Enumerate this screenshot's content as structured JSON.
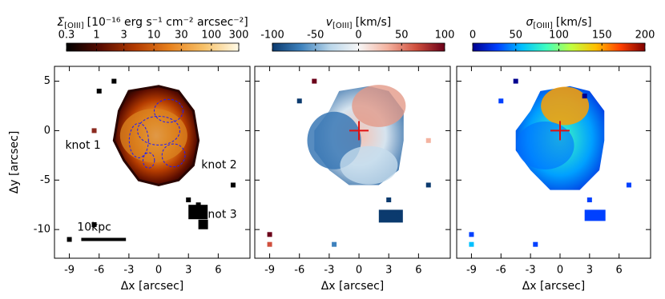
{
  "chart_data": [
    {
      "type": "map",
      "title": {
        "symbol": "Σ",
        "subscript": "[OIII]",
        "unit": "[10⁻¹⁶ erg s⁻¹ cm⁻² arcsec⁻²]"
      },
      "colorbar": {
        "lim": [
          0.3,
          300
        ],
        "log": true,
        "ticks": [
          0.3,
          1,
          3,
          10,
          30,
          100,
          300
        ],
        "colors": [
          "#000000",
          "#5a0c00",
          "#b33b00",
          "#e8821e",
          "#f7c26a",
          "#fffbe8"
        ]
      },
      "xlabel": "Δx [arcsec]",
      "ylabel": "Δy [arcsec]",
      "xlim": [
        -10.5,
        9.2
      ],
      "ylim": [
        -12.9,
        6.5
      ],
      "xticks": [
        -9,
        -6,
        -3,
        0,
        3,
        6
      ],
      "yticks": [
        -10,
        -5,
        0,
        5
      ],
      "ytick_labels": true,
      "annotations": [
        "knot 1",
        "knot 2",
        "knot 3",
        "10kpc"
      ]
    },
    {
      "type": "map",
      "title": {
        "symbol": "v",
        "subscript": "[OIII]",
        "unit": "[km/s]"
      },
      "colorbar": {
        "lim": [
          -100,
          100
        ],
        "log": false,
        "ticks": [
          -100,
          -50,
          0,
          50,
          100
        ],
        "colors": [
          "#0b3a6e",
          "#3e82bd",
          "#b9d6ea",
          "#f7f7f7",
          "#f4b3a0",
          "#d0503e",
          "#6b0019"
        ]
      },
      "xlabel": "Δx [arcsec]",
      "xlim": [
        -10.5,
        9.2
      ],
      "ylim": [
        -12.9,
        6.5
      ],
      "xticks": [
        -9,
        -6,
        -3,
        0,
        3,
        6
      ],
      "yticks": [
        -10,
        -5,
        0,
        5
      ],
      "ytick_labels": false
    },
    {
      "type": "map",
      "title": {
        "symbol": "σ",
        "subscript": "[OIII]",
        "unit": "[km/s]"
      },
      "colorbar": {
        "lim": [
          0,
          200
        ],
        "log": false,
        "ticks": [
          0,
          50,
          100,
          150,
          200
        ],
        "colors": [
          "#00008f",
          "#0040ff",
          "#00c0ff",
          "#40ffbf",
          "#c0ff40",
          "#ffc000",
          "#ff4000",
          "#800000"
        ]
      },
      "xlabel": "Δx [arcsec]",
      "xlim": [
        -10.5,
        9.2
      ],
      "ylim": [
        -12.9,
        6.5
      ],
      "xticks": [
        -9,
        -6,
        -3,
        0,
        3,
        6
      ],
      "yticks": [
        -10,
        -5,
        0,
        5
      ],
      "ytick_labels": false
    }
  ]
}
